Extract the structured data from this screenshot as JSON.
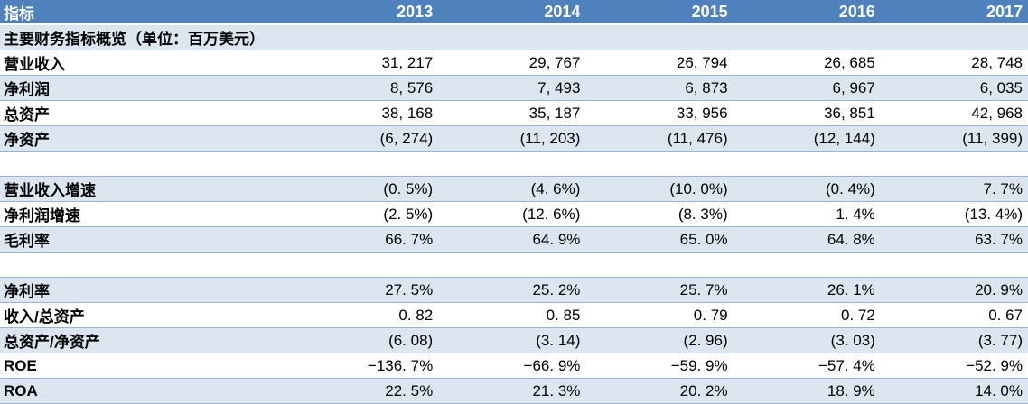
{
  "chart_data": {
    "type": "table",
    "title": "主要财务指标概览（单位：百万美元）",
    "columns": [
      "指标",
      "2013",
      "2014",
      "2015",
      "2016",
      "2017"
    ],
    "rows": [
      {
        "label": "营业收入",
        "values": [
          "31, 217",
          "29, 767",
          "26, 794",
          "26, 685",
          "28, 748"
        ]
      },
      {
        "label": "净利润",
        "values": [
          "8, 576",
          "7, 493",
          "6, 873",
          "6, 967",
          "6, 035"
        ]
      },
      {
        "label": "总资产",
        "values": [
          "38, 168",
          "35, 187",
          "33, 956",
          "36, 851",
          "42, 968"
        ]
      },
      {
        "label": "净资产",
        "values": [
          "(6, 274)",
          "(11, 203)",
          "(11, 476)",
          "(12, 144)",
          "(11, 399)"
        ]
      },
      {
        "label": "",
        "values": [
          "",
          "",
          "",
          "",
          ""
        ]
      },
      {
        "label": "营业收入增速",
        "values": [
          "(0. 5%)",
          "(4. 6%)",
          "(10. 0%)",
          "(0. 4%)",
          "7. 7%"
        ]
      },
      {
        "label": "净利润增速",
        "values": [
          "(2. 5%)",
          "(12. 6%)",
          "(8. 3%)",
          "1. 4%",
          "(13. 4%)"
        ]
      },
      {
        "label": "毛利率",
        "values": [
          "66. 7%",
          "64. 9%",
          "65. 0%",
          "64. 8%",
          "63. 7%"
        ]
      },
      {
        "label": "",
        "values": [
          "",
          "",
          "",
          "",
          ""
        ]
      },
      {
        "label": "净利率",
        "values": [
          "27. 5%",
          "25. 2%",
          "25. 7%",
          "26. 1%",
          "20. 9%"
        ]
      },
      {
        "label": "收入/总资产",
        "values": [
          "0. 82",
          "0. 85",
          "0. 79",
          "0. 72",
          "0. 67"
        ]
      },
      {
        "label": "总资产/净资产",
        "values": [
          "(6. 08)",
          "(3. 14)",
          "(2. 96)",
          "(3. 03)",
          "(3. 77)"
        ]
      },
      {
        "label": "ROE",
        "values": [
          "−136. 7%",
          "−66. 9%",
          "−59. 9%",
          "−57. 4%",
          "−52. 9%"
        ]
      },
      {
        "label": "ROA",
        "values": [
          "22. 5%",
          "21. 3%",
          "20. 2%",
          "18. 9%",
          "14. 0%"
        ]
      }
    ]
  },
  "colors": {
    "header_bg": "#4f81bd",
    "header_text": "#ffffff",
    "stripe_bg": "#dce6f1",
    "row_border": "#9ab3d5",
    "body_text": "#000000"
  }
}
